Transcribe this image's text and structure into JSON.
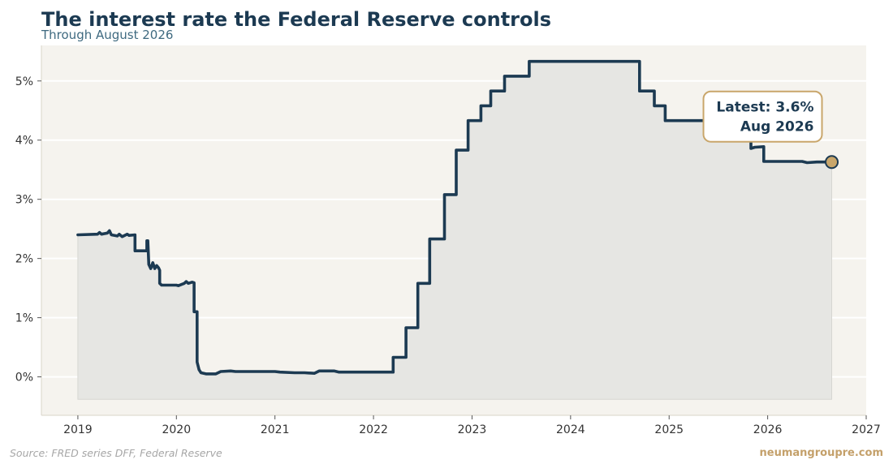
{
  "header": {
    "title": "The interest rate the Federal Reserve controls",
    "subtitle": "Through August 2026"
  },
  "footer": {
    "source": "Source: FRED series DFF, Federal Reserve",
    "brand": "neumangroupre.com"
  },
  "colors": {
    "line": "#1c3a52",
    "plot_bg": "#f5f3ee",
    "area_fill": "#e6e6e3",
    "marker_fill": "#c9a66b",
    "callout_border": "#c9a66b",
    "grid": "#ffffff"
  },
  "chart_data": {
    "type": "line",
    "title": "The interest rate the Federal Reserve controls",
    "subtitle": "Through August 2026",
    "xlabel": "",
    "ylabel": "",
    "xlim": [
      2018.63,
      2027.0
    ],
    "ylim": [
      -0.65,
      5.6
    ],
    "x_ticks": [
      2019,
      2020,
      2021,
      2022,
      2023,
      2024,
      2025,
      2026,
      2027
    ],
    "x_tick_labels": [
      "2019",
      "2020",
      "2021",
      "2022",
      "2023",
      "2024",
      "2025",
      "2026",
      "2027"
    ],
    "y_ticks": [
      0,
      1,
      2,
      3,
      4,
      5
    ],
    "y_tick_labels": [
      "0%",
      "1%",
      "2%",
      "3%",
      "4%",
      "5%"
    ],
    "area_baseline": -0.38,
    "grid": "horizontal",
    "annotation": {
      "line1": "Latest: 3.6%",
      "line2": "Aug 2026",
      "x": 2026.65,
      "y": 3.63
    },
    "series": [
      {
        "values": [
          [
            2019.0,
            2.4
          ],
          [
            2019.2,
            2.41
          ],
          [
            2019.22,
            2.44
          ],
          [
            2019.24,
            2.41
          ],
          [
            2019.3,
            2.43
          ],
          [
            2019.32,
            2.47
          ],
          [
            2019.34,
            2.4
          ],
          [
            2019.4,
            2.38
          ],
          [
            2019.42,
            2.41
          ],
          [
            2019.45,
            2.37
          ],
          [
            2019.5,
            2.41
          ],
          [
            2019.52,
            2.39
          ],
          [
            2019.58,
            2.4
          ],
          [
            2019.58,
            2.13
          ],
          [
            2019.7,
            2.13
          ],
          [
            2019.7,
            2.3
          ],
          [
            2019.71,
            2.3
          ],
          [
            2019.72,
            1.9
          ],
          [
            2019.74,
            1.83
          ],
          [
            2019.76,
            1.93
          ],
          [
            2019.78,
            1.83
          ],
          [
            2019.8,
            1.88
          ],
          [
            2019.82,
            1.84
          ],
          [
            2019.83,
            1.8
          ],
          [
            2019.83,
            1.58
          ],
          [
            2019.85,
            1.55
          ],
          [
            2020.0,
            1.55
          ],
          [
            2020.02,
            1.54
          ],
          [
            2020.08,
            1.58
          ],
          [
            2020.1,
            1.61
          ],
          [
            2020.12,
            1.58
          ],
          [
            2020.16,
            1.6
          ],
          [
            2020.18,
            1.59
          ],
          [
            2020.18,
            1.1
          ],
          [
            2020.21,
            1.1
          ],
          [
            2020.21,
            0.25
          ],
          [
            2020.23,
            0.12
          ],
          [
            2020.25,
            0.07
          ],
          [
            2020.3,
            0.05
          ],
          [
            2020.4,
            0.05
          ],
          [
            2020.45,
            0.09
          ],
          [
            2020.55,
            0.1
          ],
          [
            2020.6,
            0.09
          ],
          [
            2020.7,
            0.09
          ],
          [
            2020.9,
            0.09
          ],
          [
            2021.0,
            0.09
          ],
          [
            2021.05,
            0.08
          ],
          [
            2021.2,
            0.07
          ],
          [
            2021.3,
            0.07
          ],
          [
            2021.4,
            0.06
          ],
          [
            2021.45,
            0.1
          ],
          [
            2021.6,
            0.1
          ],
          [
            2021.65,
            0.08
          ],
          [
            2021.8,
            0.08
          ],
          [
            2022.0,
            0.08
          ],
          [
            2022.2,
            0.08
          ],
          [
            2022.2,
            0.33
          ],
          [
            2022.33,
            0.33
          ],
          [
            2022.33,
            0.83
          ],
          [
            2022.45,
            0.83
          ],
          [
            2022.45,
            1.58
          ],
          [
            2022.57,
            1.58
          ],
          [
            2022.57,
            2.33
          ],
          [
            2022.72,
            2.33
          ],
          [
            2022.72,
            3.08
          ],
          [
            2022.84,
            3.08
          ],
          [
            2022.84,
            3.83
          ],
          [
            2022.96,
            3.83
          ],
          [
            2022.96,
            4.33
          ],
          [
            2023.09,
            4.33
          ],
          [
            2023.09,
            4.58
          ],
          [
            2023.19,
            4.58
          ],
          [
            2023.19,
            4.83
          ],
          [
            2023.33,
            4.83
          ],
          [
            2023.33,
            5.08
          ],
          [
            2023.58,
            5.08
          ],
          [
            2023.58,
            5.33
          ],
          [
            2024.7,
            5.33
          ],
          [
            2024.7,
            4.83
          ],
          [
            2024.85,
            4.83
          ],
          [
            2024.85,
            4.58
          ],
          [
            2024.96,
            4.58
          ],
          [
            2024.96,
            4.33
          ],
          [
            2025.83,
            4.33
          ],
          [
            2025.83,
            3.86
          ],
          [
            2025.87,
            3.88
          ],
          [
            2025.96,
            3.89
          ],
          [
            2025.96,
            3.64
          ],
          [
            2026.35,
            3.64
          ],
          [
            2026.4,
            3.62
          ],
          [
            2026.5,
            3.63
          ],
          [
            2026.65,
            3.63
          ]
        ]
      }
    ]
  }
}
